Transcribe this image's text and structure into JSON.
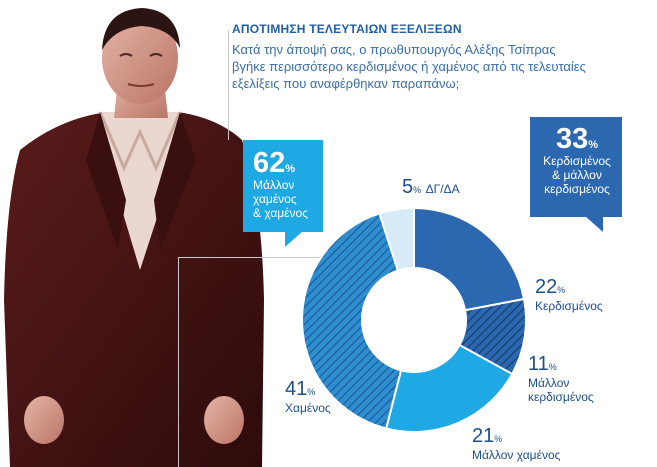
{
  "headline": "ΑΠΟΤΙΜΗΣΗ ΤΕΛΕΥΤΑΙΩΝ ΕΞΕΛΙΞΕΩΝ",
  "question": "Κατά την άποψή σας, ο πρωθυπουργός Αλέξης Τσίπρας βγήκε περισσότερο κερδισμένος ή χαμένος από τις τελευταίες εξελίξεις που αναφέρθηκαν παραπάνω;",
  "colors": {
    "winner": "#2b68b0",
    "winner_hatch": "#1f4f8a",
    "loser": "#1fa9e4",
    "loser_hatch": "#2a6fb5",
    "dont_know": "#d6ebf5",
    "callout_lost": "#1fa9e4",
    "callout_won": "#2b68b0",
    "text": "#1e4f8c"
  },
  "callouts": {
    "lost": {
      "value": "62",
      "sign": "%",
      "line1": "Μάλλον",
      "line2": "χαμένος",
      "line3": "& χαμένος"
    },
    "won": {
      "value": "33",
      "sign": "%",
      "line1": "Κερδισμένος",
      "line2": "& μάλλον",
      "line3": "κερδισμένος"
    }
  },
  "chart_data": {
    "type": "pie",
    "variant": "donut",
    "categories": [
      "Κερδισμένος",
      "Μάλλον κερδισμένος",
      "Μάλλον χαμένος",
      "Χαμένος",
      "ΔΓ/ΔΑ"
    ],
    "values": [
      22,
      11,
      21,
      41,
      5
    ],
    "unit": "%",
    "hatched": [
      false,
      true,
      false,
      true,
      false
    ],
    "labels": [
      {
        "value": "22",
        "sign": "%",
        "name1": "Κερδισμένος",
        "name2": ""
      },
      {
        "value": "11",
        "sign": "%",
        "name1": "Μάλλον",
        "name2": "κερδισμένος"
      },
      {
        "value": "21",
        "sign": "%",
        "name1": "Μάλλον χαμένος",
        "name2": ""
      },
      {
        "value": "41",
        "sign": "%",
        "name1": "Χαμένος",
        "name2": ""
      },
      {
        "value": "5",
        "sign": "%",
        "name1": "ΔΓ/ΔΑ",
        "name2": ""
      }
    ]
  }
}
